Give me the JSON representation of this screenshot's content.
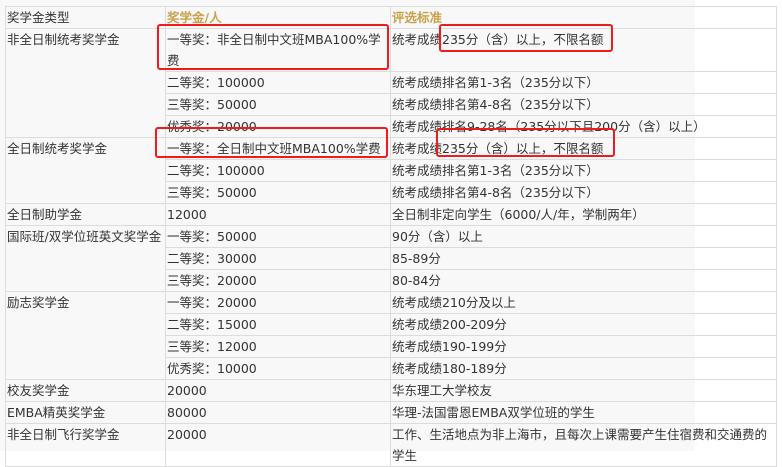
{
  "header": {
    "type": "奖学金类型",
    "amount": "奖学金/人",
    "criteria": "评选标准"
  },
  "accent_color": "#c9a24a",
  "highlight_color": "#ee1c1c",
  "categories": [
    {
      "name": "非全日制统考奖学金",
      "rows": [
        {
          "amount": "一等奖：非全日制中文班MBA100%学费",
          "criteria": "统考成绩235分（含）以上，不限名额"
        },
        {
          "amount": "二等奖：100000",
          "criteria": "统考成绩排名第1-3名（235分以下）"
        },
        {
          "amount": "三等奖：50000",
          "criteria": "统考成绩排名第4-8名（235分以下）"
        },
        {
          "amount": "优秀奖：20000",
          "criteria": "统考成绩排名9-28名（235分以下且200分（含）以上）"
        }
      ]
    },
    {
      "name": "全日制统考奖学金",
      "rows": [
        {
          "amount": "一等奖：全日制中文班MBA100%学费",
          "criteria": "统考成绩235分（含）以上，不限名额"
        },
        {
          "amount": "二等奖：100000",
          "criteria": "统考成绩排名第1-3名（235分以下）"
        },
        {
          "amount": "三等奖：50000",
          "criteria": "统考成绩排名第4-8名（235分以下）"
        }
      ]
    },
    {
      "name": "全日制助学金",
      "rows": [
        {
          "amount": "12000",
          "criteria": "全日制非定向学生（6000/人/年，学制两年）"
        }
      ]
    },
    {
      "name": "国际班/双学位班英文奖学金",
      "rows": [
        {
          "amount": "一等奖：50000",
          "criteria": "90分（含）以上"
        },
        {
          "amount": "二等奖：30000",
          "criteria": "85-89分"
        },
        {
          "amount": "三等奖：20000",
          "criteria": "80-84分"
        }
      ]
    },
    {
      "name": "励志奖学金",
      "rows": [
        {
          "amount": "一等奖：20000",
          "criteria": "统考成绩210分及以上"
        },
        {
          "amount": "二等奖：15000",
          "criteria": "统考成绩200-209分"
        },
        {
          "amount": "三等奖：12000",
          "criteria": "统考成绩190-199分"
        },
        {
          "amount": "优秀奖：10000",
          "criteria": "统考成绩180-189分"
        }
      ]
    },
    {
      "name": "校友奖学金",
      "rows": [
        {
          "amount": "20000",
          "criteria": "华东理工大学校友"
        }
      ]
    },
    {
      "name": "EMBA精英奖学金",
      "rows": [
        {
          "amount": "80000",
          "criteria": "华理-法国雷恩EMBA双学位班的学生"
        }
      ]
    },
    {
      "name": "非全日制飞行奖学金",
      "rows": [
        {
          "amount": "20000",
          "criteria": "工作、生活地点为非上海市，且每次上课需要产生住宿费和交通费的学生"
        }
      ]
    }
  ]
}
